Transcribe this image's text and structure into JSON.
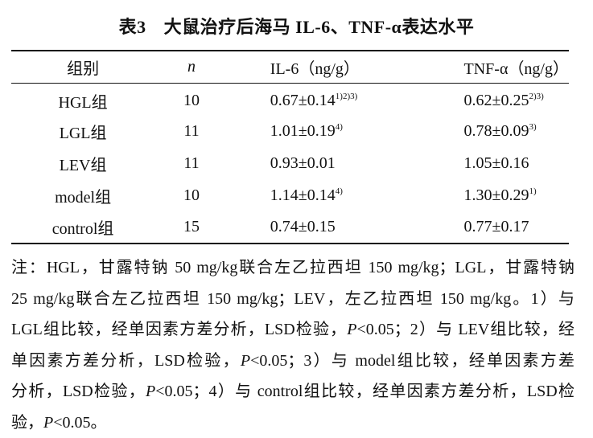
{
  "title": {
    "table_number": "表3",
    "caption": "大鼠治疗后海马 IL-6、TNF-α表达水平"
  },
  "table": {
    "headers": [
      "组别",
      "n",
      "IL-6（ng/g）",
      "TNF-α（ng/g）"
    ],
    "rows": [
      {
        "group": "HGL组",
        "n": "10",
        "il6": "0.67±0.14",
        "il6_sup": "1)2)3)",
        "tnf": "0.62±0.25",
        "tnf_sup": "2)3)"
      },
      {
        "group": "LGL组",
        "n": "11",
        "il6": "1.01±0.19",
        "il6_sup": "4)",
        "tnf": "0.78±0.09",
        "tnf_sup": "3)"
      },
      {
        "group": "LEV组",
        "n": "11",
        "il6": "0.93±0.01",
        "il6_sup": "",
        "tnf": "1.05±0.16",
        "tnf_sup": ""
      },
      {
        "group": "model组",
        "n": "10",
        "il6": "1.14±0.14",
        "il6_sup": "4)",
        "tnf": "1.30±0.29",
        "tnf_sup": "1)"
      },
      {
        "group": "control组",
        "n": "15",
        "il6": "0.74±0.15",
        "il6_sup": "",
        "tnf": "0.77±0.17",
        "tnf_sup": ""
      }
    ]
  },
  "note": {
    "lines": [
      "注：HGL，甘露特钠 50 mg/kg联合左乙拉西坦 150 mg/kg；LGL，甘露特钠",
      "25 mg/kg联合左乙拉西坦 150 mg/kg；LEV，左乙拉西坦 150 mg/kg。1）与",
      "LGL组比较，经单因素方差分析，LSD检验，P<0.05；2）与 LEV组比较，经",
      "单因素方差分析，LSD检验，P<0.05；3）与 model组比较，经单因素方差",
      "分析，LSD检验，P<0.05；4）与 control组比较，经单因素方差分析，LSD检",
      "验，P<0.05。"
    ]
  }
}
